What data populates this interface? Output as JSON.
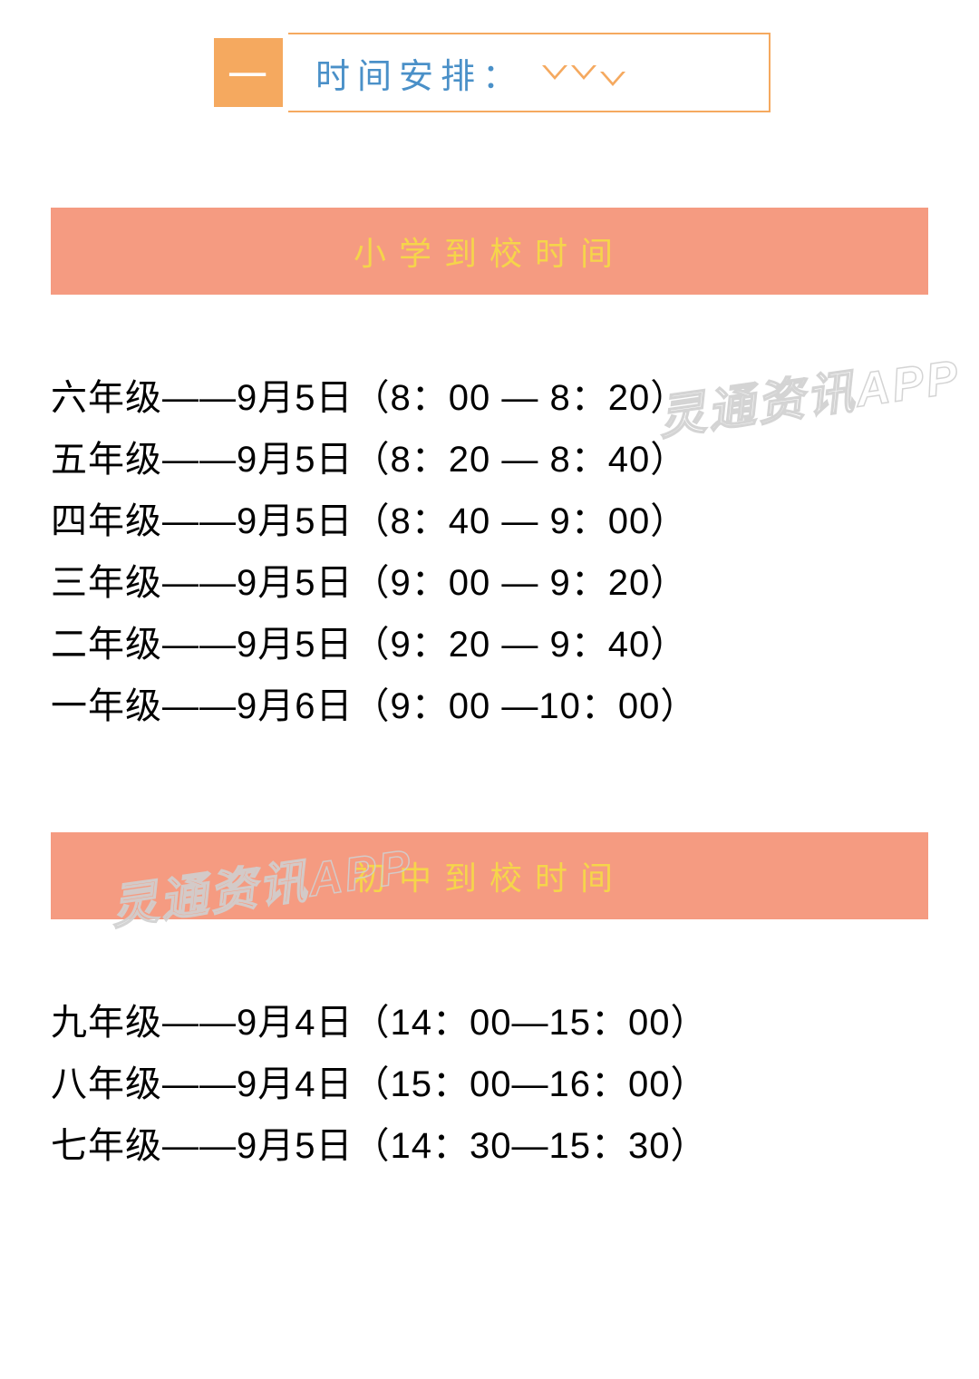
{
  "header": {
    "badge_text": "一",
    "title": "时间安排：",
    "badge_bg": "#f5a95f",
    "badge_text_color": "#ffffff",
    "title_color": "#4a90c8",
    "chevron_color": "#f5a95f"
  },
  "sections": [
    {
      "title": "小学到校时间",
      "banner_bg": "#f59b81",
      "banner_text_color": "#f5d54a",
      "rows": [
        "六年级——9月5日（8：00 — 8：20）",
        "五年级——9月5日（8：20 —  8：40）",
        "四年级——9月5日（8：40 —  9：00）",
        "三年级——9月5日（9：00 —  9：20）",
        "二年级——9月5日（9：20 —  9：40）",
        "一年级——9月6日（9：00 —10：00）"
      ]
    },
    {
      "title": "初中到校时间",
      "banner_bg": "#f59b81",
      "banner_text_color": "#f5d54a",
      "rows": [
        "九年级——9月4日（14：00—15：00）",
        "八年级——9月4日（15：00—16：00）",
        "七年级——9月5日（14：30—15：30）"
      ]
    }
  ],
  "watermark": {
    "text": "灵通资讯APP",
    "stroke_color": "#d0d0d0"
  },
  "typography": {
    "row_fontsize": 40,
    "banner_fontsize": 36,
    "header_title_fontsize": 38,
    "badge_fontsize": 44
  },
  "colors": {
    "background": "#ffffff",
    "text": "#000000"
  }
}
